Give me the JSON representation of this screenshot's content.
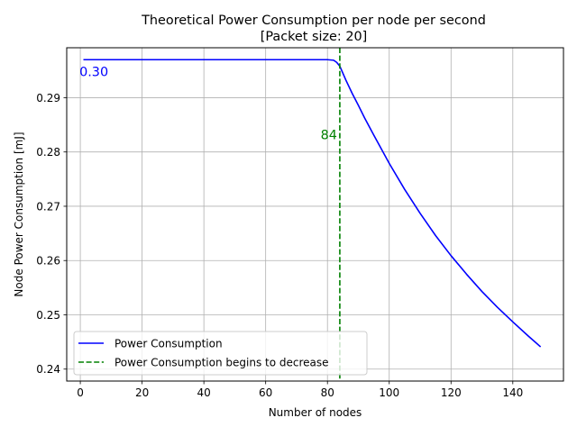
{
  "chart_data": {
    "type": "line",
    "title": "Theoretical Power Consumption per node per second",
    "subtitle": "[Packet size: 20]",
    "xlabel": "Number of nodes",
    "ylabel": "Node Power Consumption [mJ]",
    "xlim": [
      -4.4,
      156.4
    ],
    "ylim": [
      0.2378,
      0.2992
    ],
    "xticks": [
      0,
      20,
      40,
      60,
      80,
      100,
      120,
      140
    ],
    "xtick_labels": [
      "0",
      "20",
      "40",
      "60",
      "80",
      "100",
      "120",
      "140"
    ],
    "yticks": [
      0.24,
      0.25,
      0.26,
      0.27,
      0.28,
      0.29
    ],
    "ytick_labels": [
      "0.24",
      "0.25",
      "0.26",
      "0.27",
      "0.28",
      "0.29"
    ],
    "grid": true,
    "legend_position": "lower-left",
    "series": [
      {
        "name": "Power Consumption",
        "color": "#0000ff",
        "style": "solid",
        "x": [
          1,
          10,
          20,
          30,
          40,
          50,
          60,
          70,
          80,
          82,
          83,
          84,
          85,
          86,
          88,
          90,
          92,
          95,
          100,
          105,
          110,
          115,
          120,
          125,
          130,
          135,
          140,
          145,
          149
        ],
        "y": [
          0.297,
          0.297,
          0.297,
          0.297,
          0.297,
          0.297,
          0.297,
          0.297,
          0.297,
          0.2969,
          0.2965,
          0.2958,
          0.2945,
          0.2932,
          0.2908,
          0.2886,
          0.2863,
          0.2831,
          0.2779,
          0.2731,
          0.2687,
          0.2646,
          0.2609,
          0.2575,
          0.2543,
          0.2514,
          0.2487,
          0.2461,
          0.2441
        ]
      },
      {
        "name": "Power Consumption begins to decrease",
        "color": "#008000",
        "style": "dashed",
        "vline_x": 84
      }
    ],
    "annotations": [
      {
        "text": "0.30",
        "x": 0,
        "y": 0.2948,
        "color": "#0000ff"
      },
      {
        "text": "84",
        "x": 84,
        "y": 0.2832,
        "color": "#008000"
      }
    ]
  }
}
